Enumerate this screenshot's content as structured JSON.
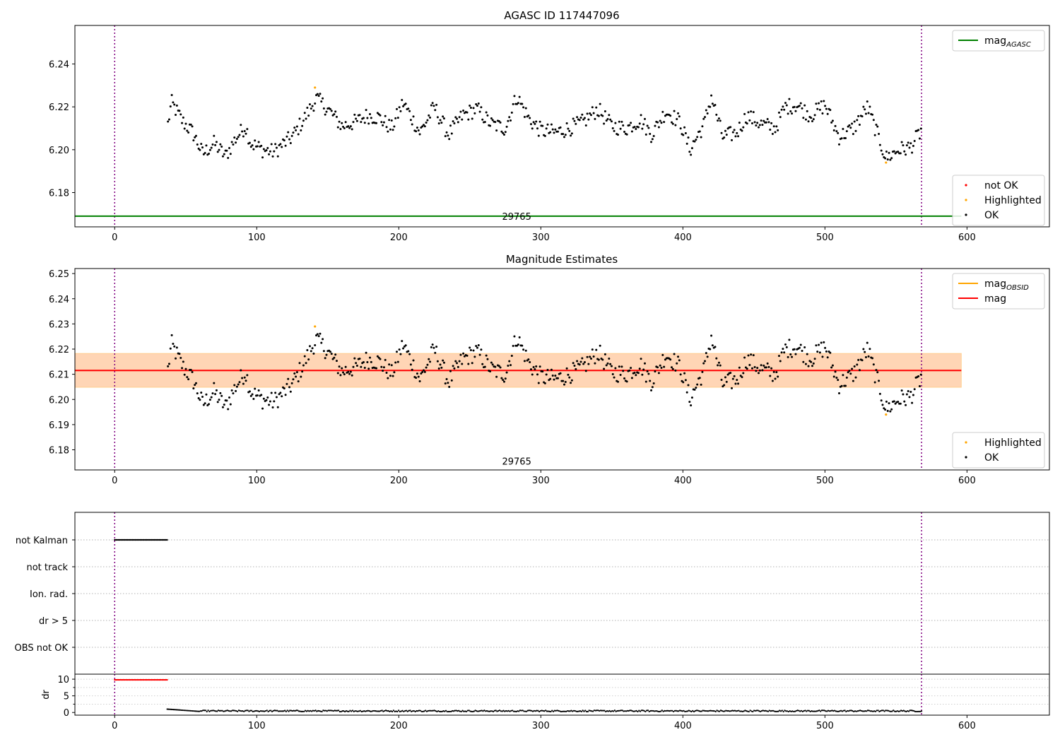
{
  "chart_data": [
    {
      "type": "scatter",
      "title": "AGASC ID 117447096",
      "xlim": [
        -28,
        658
      ],
      "ylim": [
        6.164,
        6.258
      ],
      "xticks": [
        0,
        100,
        200,
        300,
        400,
        500,
        600
      ],
      "yticks": [
        6.18,
        6.2,
        6.22,
        6.24
      ],
      "ytick_decimals": 2,
      "vlines": [
        0,
        568
      ],
      "hline": {
        "y": 6.169,
        "x_range": [
          -28,
          596
        ],
        "color": "#008000"
      },
      "annotation": {
        "text": "29765",
        "x": 283,
        "y": 6.169
      },
      "series_x_range": [
        37,
        568
      ],
      "base_line": {
        "start": 6.2125,
        "end": 6.209
      },
      "highlights": [
        {
          "x": 141,
          "y": 6.229
        },
        {
          "x": 543,
          "y": 6.194
        }
      ],
      "legends": [
        {
          "position": "top-right",
          "entries": [
            {
              "kind": "line",
              "color": "#008000",
              "label": "mag",
              "sub": "AGASC"
            }
          ]
        },
        {
          "position": "bottom-right",
          "entries": [
            {
              "kind": "dot",
              "color": "#ff0000",
              "label": "not OK"
            },
            {
              "kind": "dot",
              "color": "#ffa500",
              "label": "Highlighted"
            },
            {
              "kind": "dot",
              "color": "#000000",
              "label": "OK"
            }
          ]
        }
      ],
      "series": [
        {
          "name": "not OK",
          "color": "#ff0000",
          "values": []
        },
        {
          "name": "Highlighted",
          "color": "#ffa500",
          "values": [
            6.229,
            6.194
          ]
        },
        {
          "name": "OK",
          "color": "#000000",
          "values": "magnitude samples, x 37–568"
        }
      ]
    },
    {
      "type": "scatter",
      "title": "Magnitude Estimates",
      "xlim": [
        -28,
        658
      ],
      "ylim": [
        6.172,
        6.252
      ],
      "xticks": [
        0,
        100,
        200,
        300,
        400,
        500,
        600
      ],
      "yticks": [
        6.18,
        6.19,
        6.2,
        6.21,
        6.22,
        6.23,
        6.24,
        6.25
      ],
      "ytick_decimals": 2,
      "vlines": [
        0,
        568
      ],
      "annotation": {
        "text": "29765",
        "x": 283,
        "y": 6.1755
      },
      "bands": [
        {
          "x_range": [
            -28,
            596
          ],
          "y_range": [
            6.2048,
            6.2183
          ],
          "color": "#ffc0cb",
          "opacity": 0.45
        },
        {
          "x_range": [
            -28,
            596
          ],
          "y_range": [
            6.2048,
            6.2183
          ],
          "color": "#ffa500",
          "opacity": 0.22
        }
      ],
      "mean_line": {
        "y": 6.2115,
        "x_range": [
          -28,
          596
        ],
        "color": "#ff0000"
      },
      "legends": [
        {
          "position": "top-right",
          "entries": [
            {
              "kind": "line",
              "color": "#ffa500",
              "label": "mag",
              "sub": "OBSID"
            },
            {
              "kind": "line",
              "color": "#ff0000",
              "label": "mag"
            }
          ]
        },
        {
          "position": "bottom-right",
          "entries": [
            {
              "kind": "dot",
              "color": "#ffa500",
              "label": "Highlighted"
            },
            {
              "kind": "dot",
              "color": "#000000",
              "label": "OK"
            }
          ]
        }
      ]
    },
    {
      "type": "scatter",
      "xlim": [
        -28,
        658
      ],
      "categories": [
        "not Kalman",
        "not track",
        "Ion. rad.",
        "dr > 5",
        "OBS not OK"
      ],
      "flag_points": {
        "category": "not Kalman",
        "x_range": [
          0,
          37
        ]
      },
      "vlines": [
        0,
        568
      ],
      "grid": "horizontal dotted"
    },
    {
      "type": "scatter",
      "ylabel": "dr",
      "xlim": [
        -28,
        658
      ],
      "ylim": [
        -0.8,
        11.5
      ],
      "xticks": [
        0,
        100,
        200,
        300,
        400,
        500,
        600
      ],
      "yticks": [
        0,
        5,
        10
      ],
      "vlines": [
        0,
        568
      ],
      "high_points": {
        "x_range": [
          0,
          37
        ],
        "y": 9.8,
        "color": "#ff0000"
      },
      "low_points": {
        "x_range": [
          37,
          568
        ],
        "y_range": [
          0.05,
          1.1
        ],
        "color": "#000000"
      }
    }
  ]
}
